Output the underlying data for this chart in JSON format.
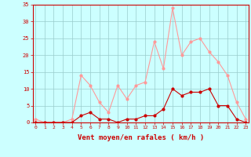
{
  "hours": [
    0,
    1,
    2,
    3,
    4,
    5,
    6,
    7,
    8,
    9,
    10,
    11,
    12,
    13,
    14,
    15,
    16,
    17,
    18,
    19,
    20,
    21,
    22,
    23
  ],
  "wind_avg": [
    0,
    0,
    0,
    0,
    0,
    2,
    3,
    1,
    1,
    0,
    1,
    1,
    2,
    2,
    4,
    10,
    8,
    9,
    9,
    10,
    5,
    5,
    1,
    0
  ],
  "wind_gust": [
    1,
    0,
    0,
    0,
    1,
    14,
    11,
    6,
    3,
    11,
    7,
    11,
    12,
    24,
    16,
    34,
    20,
    24,
    25,
    21,
    18,
    14,
    6,
    1
  ],
  "line_color_avg": "#cc0000",
  "line_color_gust": "#ff9999",
  "bg_color": "#ccffff",
  "grid_color": "#99cccc",
  "axis_color": "#cc0000",
  "xlabel": "Vent moyen/en rafales ( km/h )",
  "ylim": [
    0,
    35
  ],
  "yticks": [
    0,
    5,
    10,
    15,
    20,
    25,
    30,
    35
  ],
  "xticks": [
    0,
    1,
    2,
    3,
    4,
    5,
    6,
    7,
    8,
    9,
    10,
    11,
    12,
    13,
    14,
    15,
    16,
    17,
    18,
    19,
    20,
    21,
    22,
    23
  ]
}
